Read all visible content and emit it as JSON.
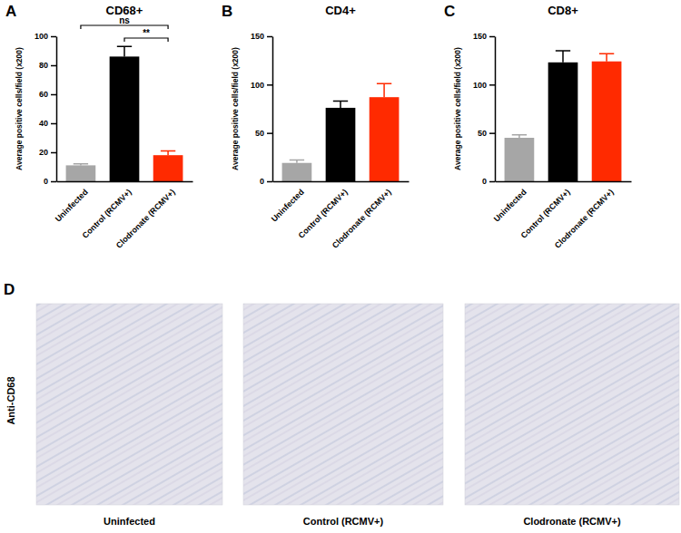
{
  "chart_data": [
    {
      "panel": "A",
      "type": "bar",
      "title": "CD68+",
      "y_label": "Average positive cells/field (x200)",
      "categories": [
        "Uninfected",
        "Control (RCMV+)",
        "Clodronate (RCMV+)"
      ],
      "values": [
        11,
        86,
        18
      ],
      "errors": [
        1,
        7,
        3
      ],
      "colors": [
        "#a6a6a6",
        "#000000",
        "#ff2a00"
      ],
      "ylim": [
        0,
        100
      ],
      "yticks": [
        0,
        20,
        40,
        60,
        80,
        100
      ],
      "annotations": [
        {
          "text": "ns",
          "between": [
            "Uninfected",
            "Clodronate (RCMV+)"
          ]
        },
        {
          "text": "**",
          "between": [
            "Control (RCMV+)",
            "Clodronate (RCMV+)"
          ]
        }
      ]
    },
    {
      "panel": "B",
      "type": "bar",
      "title": "CD4+",
      "y_label": "Average positive cells/field (x200)",
      "categories": [
        "Uninfected",
        "Control (RCMV+)",
        "Clodronate (RCMV+)"
      ],
      "values": [
        19,
        76,
        87
      ],
      "errors": [
        3,
        7,
        14
      ],
      "colors": [
        "#a6a6a6",
        "#000000",
        "#ff2a00"
      ],
      "ylim": [
        0,
        150
      ],
      "yticks": [
        0,
        50,
        100,
        150
      ]
    },
    {
      "panel": "C",
      "type": "bar",
      "title": "CD8+",
      "y_label": "Average positive cells/field (x200)",
      "categories": [
        "Uninfected",
        "Control (RCMV+)",
        "Clodronate (RCMV+)"
      ],
      "values": [
        45,
        123,
        124
      ],
      "errors": [
        3,
        12,
        8
      ],
      "colors": [
        "#a6a6a6",
        "#000000",
        "#ff2a00"
      ],
      "ylim": [
        0,
        150
      ],
      "yticks": [
        0,
        50,
        100,
        150
      ]
    }
  ],
  "panel_d": {
    "panel": "D",
    "row_label": "Anti-CD68",
    "captions": [
      "Uninfected",
      "Control (RCMV+)",
      "Clodronate (RCMV+)"
    ]
  }
}
